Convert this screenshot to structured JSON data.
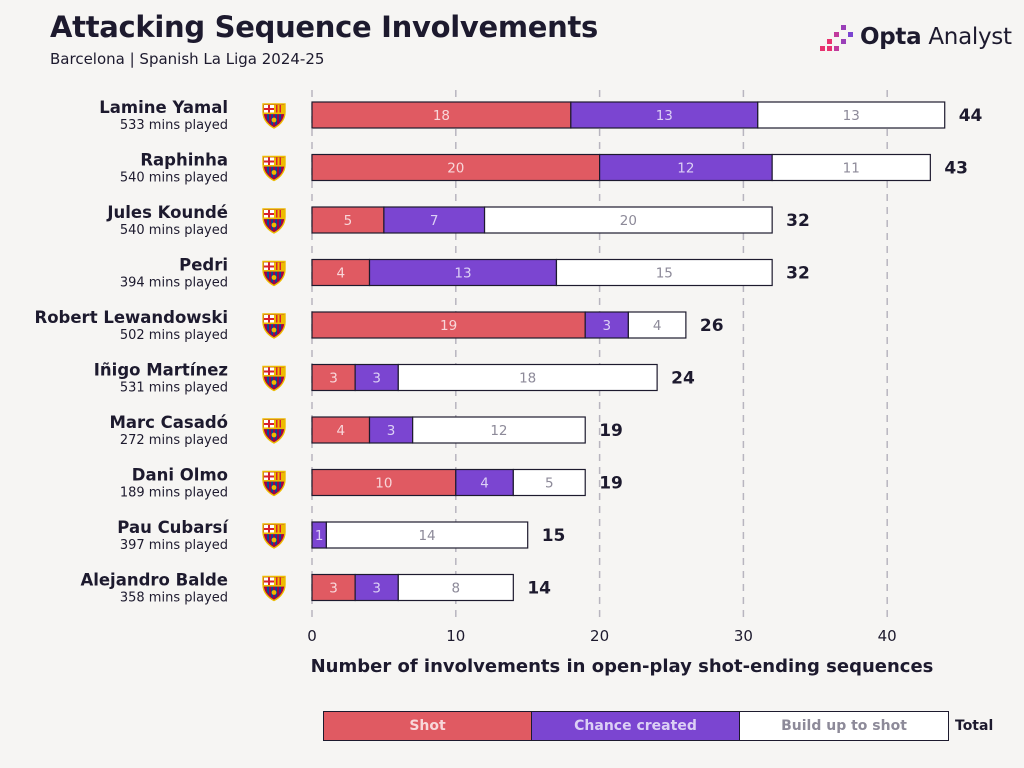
{
  "title": "Attacking Sequence Involvements",
  "subtitle": "Barcelona | Spanish La Liga 2024-25",
  "brand": {
    "bold": "Opta",
    "rest": " Analyst"
  },
  "colors": {
    "shot": "#e05a62",
    "chance": "#7b45d1",
    "build": "#ffffff",
    "dark": "#1d1a2e",
    "grid": "#b8b5bf",
    "build_text": "#8d8a99",
    "brand_pink": "#e8326f",
    "brand_purple": "#7b45d1"
  },
  "legend": {
    "shot": "Shot",
    "chance": "Chance created",
    "build": "Build up to shot",
    "total": "Total"
  },
  "chart_data": {
    "type": "bar",
    "orientation": "horizontal",
    "stacked": true,
    "title": "Attacking Sequence Involvements",
    "xlabel": "Number of involvements in open-play shot-ending sequences",
    "xlim": [
      0,
      44
    ],
    "xticks": [
      0,
      10,
      20,
      30,
      40
    ],
    "grid": true,
    "categories": [
      "Lamine Yamal",
      "Raphinha",
      "Jules Koundé",
      "Pedri",
      "Robert Lewandowski",
      "Iñigo Martínez",
      "Marc Casadó",
      "Dani Olmo",
      "Pau Cubarsí",
      "Alejandro Balde"
    ],
    "minutes": [
      "533 mins played",
      "540 mins played",
      "540 mins played",
      "394 mins played",
      "502 mins played",
      "531 mins played",
      "272 mins played",
      "189 mins played",
      "397 mins played",
      "358 mins played"
    ],
    "series": [
      {
        "name": "Shot",
        "values": [
          18,
          20,
          5,
          4,
          19,
          3,
          4,
          10,
          0,
          3
        ]
      },
      {
        "name": "Chance created",
        "values": [
          13,
          12,
          7,
          13,
          3,
          3,
          3,
          4,
          1,
          3
        ]
      },
      {
        "name": "Build up to shot",
        "values": [
          13,
          11,
          20,
          15,
          4,
          18,
          12,
          5,
          14,
          8
        ]
      }
    ],
    "totals": [
      44,
      43,
      32,
      32,
      26,
      24,
      19,
      19,
      15,
      14
    ]
  }
}
